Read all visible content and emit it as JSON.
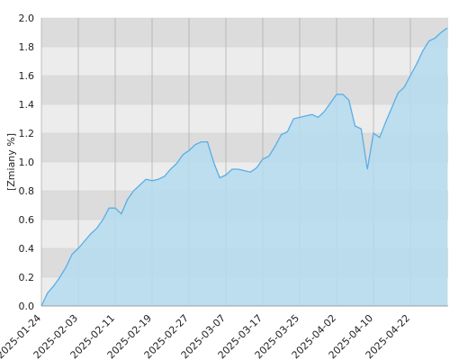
{
  "chart_data": {
    "type": "area",
    "y_label": "[Zmiany %]",
    "categories": [
      "2025-01-24",
      null,
      null,
      null,
      null,
      null,
      "2025-02-03",
      null,
      null,
      null,
      null,
      null,
      "2025-02-11",
      null,
      null,
      null,
      null,
      null,
      "2025-02-19",
      null,
      null,
      null,
      null,
      null,
      "2025-02-27",
      null,
      null,
      null,
      null,
      null,
      "2025-03-07",
      null,
      null,
      null,
      null,
      null,
      "2025-03-17",
      null,
      null,
      null,
      null,
      null,
      "2025-03-25",
      null,
      null,
      null,
      null,
      null,
      "2025-04-02",
      null,
      null,
      null,
      null,
      null,
      "2025-04-10",
      null,
      null,
      null,
      null,
      null,
      "2025-04-22",
      null,
      null,
      null,
      null,
      null,
      null
    ],
    "values": [
      0.0,
      0.09,
      0.14,
      0.2,
      0.27,
      0.36,
      0.4,
      0.45,
      0.5,
      0.54,
      0.6,
      0.68,
      0.68,
      0.64,
      0.74,
      0.8,
      0.84,
      0.88,
      0.87,
      0.88,
      0.9,
      0.95,
      0.99,
      1.05,
      1.08,
      1.12,
      1.14,
      1.14,
      1.0,
      0.89,
      0.91,
      0.95,
      0.95,
      0.94,
      0.93,
      0.96,
      1.02,
      1.04,
      1.11,
      1.19,
      1.21,
      1.3,
      1.31,
      1.32,
      1.33,
      1.31,
      1.35,
      1.41,
      1.47,
      1.47,
      1.43,
      1.25,
      1.23,
      0.95,
      1.2,
      1.17,
      1.28,
      1.38,
      1.48,
      1.52,
      1.6,
      1.68,
      1.77,
      1.84,
      1.86,
      1.9,
      1.93
    ],
    "color": "#5aaee6",
    "fill": "#b4dcee",
    "ylim": [
      0,
      2
    ],
    "yticks": [
      {
        "value": 0,
        "label": "0.0"
      },
      0.2,
      0.4,
      0.6,
      0.8,
      {
        "value": 1,
        "label": "1.0"
      },
      1.2,
      1.4,
      1.6,
      1.8,
      {
        "value": 2,
        "label": "2.0"
      }
    ],
    "grid": true
  }
}
